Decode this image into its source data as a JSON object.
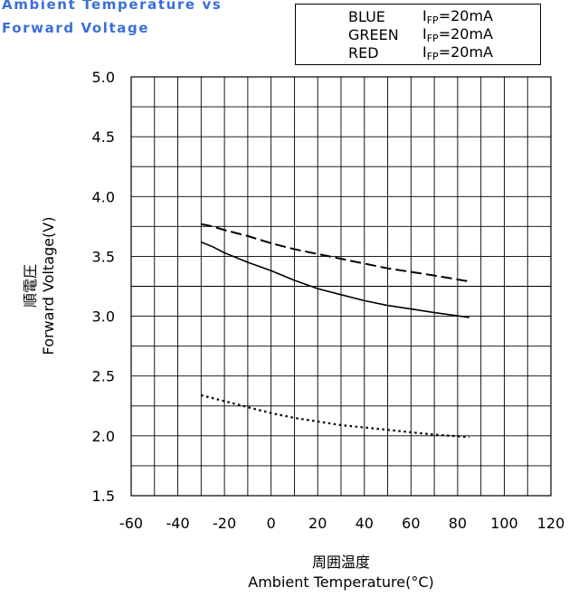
{
  "title_lines": [
    "Ambient Temperature vs",
    "Forward Voltage"
  ],
  "legend": [
    {
      "name": "BLUE",
      "cond": "I",
      "cond_sub": "FP",
      "cond_val": "=20mA",
      "style": "solid"
    },
    {
      "name": "GREEN",
      "cond": "I",
      "cond_sub": "FP",
      "cond_val": "=20mA",
      "style": "dashed"
    },
    {
      "name": "RED",
      "cond": "I",
      "cond_sub": "FP",
      "cond_val": "=20mA",
      "style": "dotted"
    }
  ],
  "xlabel_jp": "周囲温度",
  "xlabel": "Ambient Temperature(°C)",
  "ylabel_jp": "順電圧",
  "ylabel": "Forward Voltage(V)",
  "chart_data": {
    "type": "line",
    "title": "Ambient Temperature vs Forward Voltage",
    "xlabel": "Ambient Temperature(°C)",
    "ylabel": "Forward Voltage(V)",
    "xlim": [
      -60,
      120
    ],
    "ylim": [
      1.5,
      5.0
    ],
    "x_ticks": [
      "-60",
      "-40",
      "-20",
      "0",
      "20",
      "40",
      "60",
      "80",
      "100",
      "120"
    ],
    "y_ticks": [
      "5.0",
      "4.5",
      "4.0",
      "3.5",
      "3.0",
      "2.5",
      "2.0",
      "1.5"
    ],
    "grid": true,
    "legend_position": "top-right",
    "series": [
      {
        "name": "BLUE",
        "style": "solid",
        "x": [
          -30,
          -25,
          -20,
          -10,
          0,
          10,
          20,
          30,
          40,
          50,
          60,
          70,
          85
        ],
        "y": [
          3.62,
          3.58,
          3.53,
          3.45,
          3.38,
          3.3,
          3.23,
          3.18,
          3.13,
          3.09,
          3.06,
          3.03,
          2.99
        ]
      },
      {
        "name": "GREEN",
        "style": "dashed",
        "x": [
          -30,
          -25,
          -20,
          -10,
          0,
          10,
          20,
          30,
          40,
          50,
          60,
          70,
          85
        ],
        "y": [
          3.77,
          3.75,
          3.72,
          3.67,
          3.61,
          3.56,
          3.52,
          3.48,
          3.44,
          3.4,
          3.37,
          3.34,
          3.29
        ]
      },
      {
        "name": "RED",
        "style": "dotted",
        "x": [
          -30,
          -20,
          -10,
          0,
          10,
          20,
          30,
          40,
          50,
          60,
          70,
          85
        ],
        "y": [
          2.34,
          2.29,
          2.24,
          2.19,
          2.15,
          2.12,
          2.09,
          2.07,
          2.05,
          2.03,
          2.01,
          1.99
        ]
      }
    ]
  }
}
